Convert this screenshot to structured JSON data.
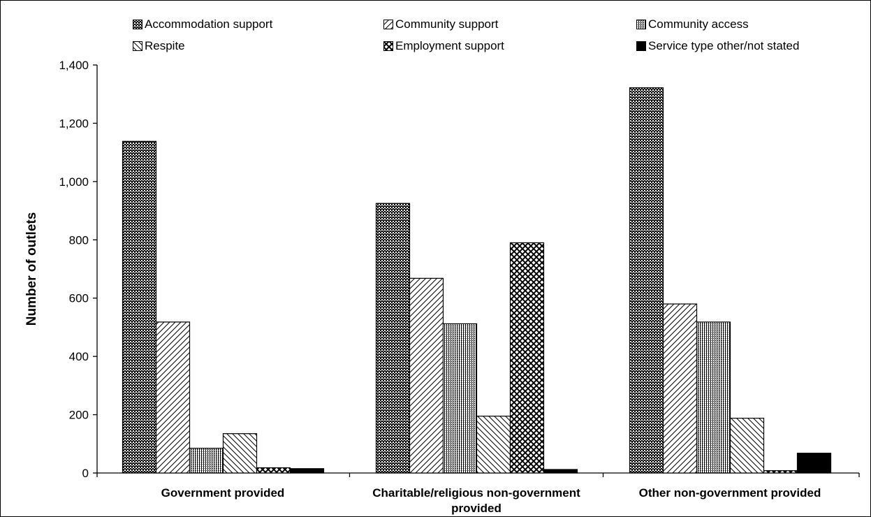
{
  "chart_data": {
    "type": "bar",
    "title": "",
    "xlabel": "",
    "ylabel": "Number of outlets",
    "ylim": [
      0,
      1400
    ],
    "yticks": [
      0,
      200,
      400,
      600,
      800,
      1000,
      1200,
      1400
    ],
    "ytick_labels": [
      "0",
      "200",
      "400",
      "600",
      "800",
      "1,000",
      "1,200",
      "1,400"
    ],
    "categories": [
      "Government provided",
      "Charitable/religious non-government provided",
      "Other non-government provided"
    ],
    "category_label_lines": [
      [
        "Government provided"
      ],
      [
        "Charitable/religious non-government",
        "provided"
      ],
      [
        "Other non-government provided"
      ]
    ],
    "grid": false,
    "legend_position": "top",
    "series": [
      {
        "name": "Accommodation support",
        "pattern": "dots",
        "values": [
          1138,
          925,
          1322
        ]
      },
      {
        "name": "Community support",
        "pattern": "diag-up",
        "values": [
          518,
          668,
          580
        ]
      },
      {
        "name": "Community access",
        "pattern": "vlines",
        "values": [
          85,
          512,
          518
        ]
      },
      {
        "name": "Respite",
        "pattern": "diag-down",
        "values": [
          135,
          195,
          188
        ]
      },
      {
        "name": "Employment support",
        "pattern": "crosshatch",
        "values": [
          18,
          790,
          8
        ]
      },
      {
        "name": "Service type other/not stated",
        "pattern": "solid",
        "values": [
          15,
          12,
          68
        ]
      }
    ]
  }
}
